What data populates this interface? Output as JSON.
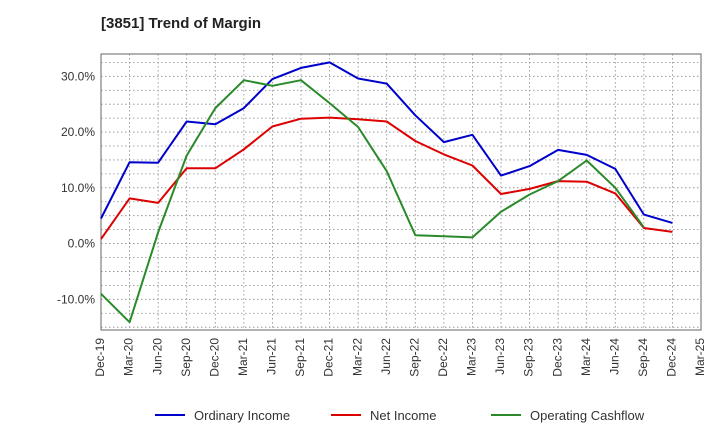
{
  "title": "[3851]  Trend of Margin",
  "chart_data": {
    "type": "line",
    "title": "[3851]  Trend of Margin",
    "xlabel": "",
    "ylabel": "",
    "categories": [
      "Dec-19",
      "Mar-20",
      "Jun-20",
      "Sep-20",
      "Dec-20",
      "Mar-21",
      "Jun-21",
      "Sep-21",
      "Dec-21",
      "Mar-22",
      "Jun-22",
      "Sep-22",
      "Dec-22",
      "Mar-23",
      "Jun-23",
      "Sep-23",
      "Dec-23",
      "Mar-24",
      "Jun-24",
      "Sep-24",
      "Dec-24",
      "Mar-25"
    ],
    "ylim": [
      -15.5,
      34.0
    ],
    "yticks": [
      -10,
      0,
      10,
      20,
      30
    ],
    "ytick_labels": [
      "-10.0%",
      "0.0%",
      "10.0%",
      "20.0%",
      "30.0%"
    ],
    "grid": true,
    "legend_position": "bottom",
    "series": [
      {
        "name": "Ordinary Income",
        "color": "#0000cc",
        "values": [
          4.5,
          14.6,
          14.5,
          21.9,
          21.4,
          24.3,
          29.5,
          31.5,
          32.5,
          29.6,
          28.7,
          23.0,
          18.2,
          19.5,
          12.2,
          13.9,
          16.8,
          15.9,
          13.4,
          5.2,
          3.7,
          null
        ]
      },
      {
        "name": "Net Income",
        "color": "#dd0000",
        "values": [
          0.8,
          8.1,
          7.3,
          13.5,
          13.5,
          16.9,
          21.0,
          22.4,
          22.6,
          22.3,
          21.9,
          18.4,
          16.0,
          14.0,
          8.9,
          9.8,
          11.2,
          11.1,
          9.0,
          2.8,
          2.1,
          null
        ]
      },
      {
        "name": "Operating Cashflow",
        "color": "#2a8a2a",
        "values": [
          -9.0,
          -14.1,
          2.0,
          15.8,
          24.3,
          29.3,
          28.3,
          29.3,
          25.2,
          20.9,
          13.0,
          1.5,
          1.3,
          1.1,
          5.7,
          8.8,
          11.2,
          14.9,
          10.0,
          2.9,
          null,
          null
        ]
      }
    ]
  }
}
